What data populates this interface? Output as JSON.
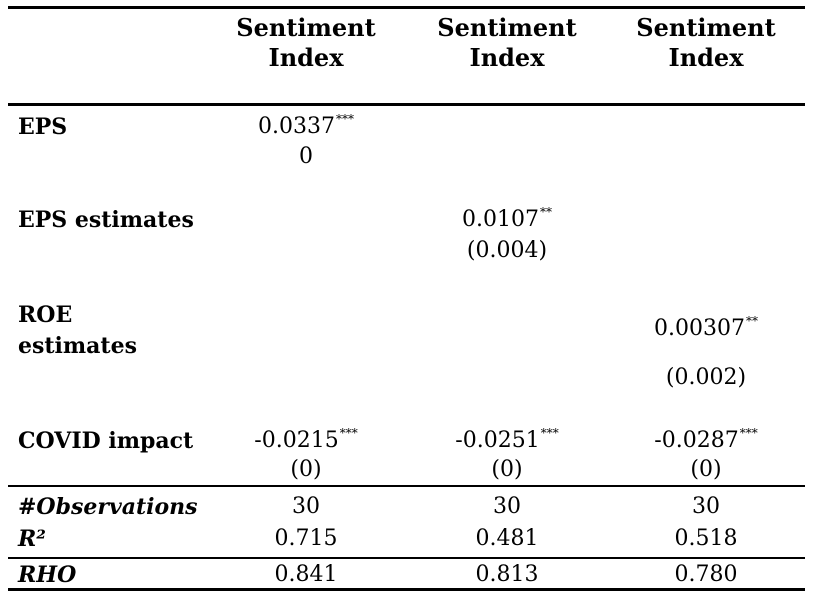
{
  "table": {
    "headers": [
      {
        "line1": "Sentiment",
        "line2": "Index"
      },
      {
        "line1": "Sentiment",
        "line2": "Index"
      },
      {
        "line1": "Sentiment",
        "line2": "Index"
      }
    ],
    "rows": {
      "eps": {
        "label": "EPS",
        "col1": {
          "coef": "0.0337",
          "stars": "***",
          "se": "0"
        }
      },
      "eps_estimates": {
        "label": "EPS estimates",
        "col2": {
          "coef": "0.0107",
          "stars": "**",
          "se": "(0.004)"
        }
      },
      "roe_estimates": {
        "label_line1": "ROE",
        "label_line2": "estimates",
        "col3": {
          "coef": "0.00307",
          "stars": "**",
          "se": "(0.002)"
        }
      },
      "covid_impact": {
        "label": "COVID impact",
        "col1": {
          "coef": "-0.0215",
          "stars": "***",
          "se": "(0)"
        },
        "col2": {
          "coef": "-0.0251",
          "stars": "***",
          "se": "(0)"
        },
        "col3": {
          "coef": "-0.0287",
          "stars": "***",
          "se": "(0)"
        }
      },
      "observations": {
        "label": "#Observations",
        "values": [
          "30",
          "30",
          "30"
        ]
      },
      "r2": {
        "label": "R²",
        "values": [
          "0.715",
          "0.481",
          "0.518"
        ]
      },
      "rho": {
        "label": "RHO",
        "values": [
          "0.841",
          "0.813",
          "0.780"
        ]
      }
    }
  }
}
